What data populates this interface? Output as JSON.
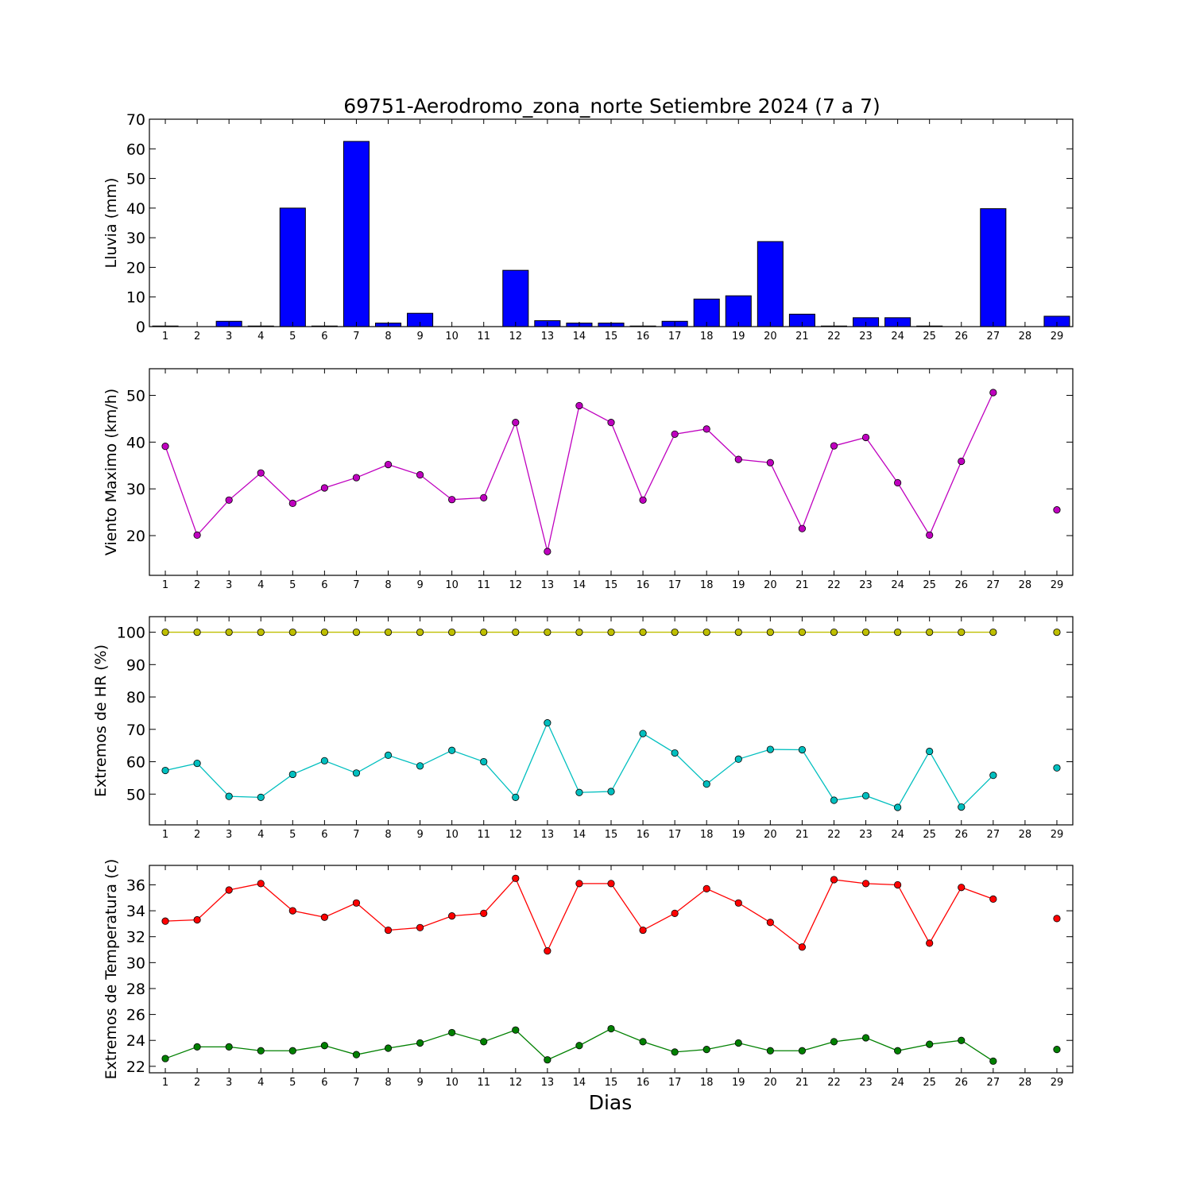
{
  "title": "69751-Aerodromo_zona_norte Setiembre 2024  (7 a 7)",
  "xlabel": "Dias",
  "chart_data": [
    {
      "id": "lluvia",
      "type": "bar",
      "ylabel": "Lluvia (mm)",
      "ylim": [
        0,
        70
      ],
      "yticks": [
        0,
        10,
        20,
        30,
        40,
        50,
        60,
        70
      ],
      "x": [
        1,
        2,
        3,
        4,
        5,
        6,
        7,
        8,
        9,
        10,
        11,
        12,
        13,
        14,
        15,
        16,
        17,
        18,
        19,
        20,
        21,
        22,
        23,
        24,
        25,
        26,
        27,
        28,
        29
      ],
      "xlim": [
        0.5,
        29.5
      ],
      "grid": false,
      "series": [
        {
          "color": "#0000ff",
          "values": [
            0.2,
            0,
            1.8,
            0.2,
            40,
            0.2,
            62.5,
            1.2,
            4.5,
            0,
            0,
            19,
            2,
            1.2,
            1.2,
            0.2,
            1.8,
            9.3,
            10.4,
            28.7,
            4.2,
            0.2,
            3,
            3,
            0.2,
            0,
            39.8,
            null,
            3.5
          ]
        }
      ]
    },
    {
      "id": "viento",
      "type": "line",
      "ylabel": "Viento Maximo (km/h)",
      "ylim": [
        11.5,
        55.7
      ],
      "yticks": [
        20,
        30,
        40,
        50
      ],
      "x": [
        1,
        2,
        3,
        4,
        5,
        6,
        7,
        8,
        9,
        10,
        11,
        12,
        13,
        14,
        15,
        16,
        17,
        18,
        19,
        20,
        21,
        22,
        23,
        24,
        25,
        26,
        27,
        28,
        29
      ],
      "xlim": [
        0.5,
        29.5
      ],
      "grid": false,
      "series": [
        {
          "color": "#bf00bf",
          "values": [
            39.1,
            20.1,
            27.6,
            33.4,
            26.9,
            30.2,
            32.4,
            35.2,
            33,
            27.7,
            28.1,
            44.2,
            16.6,
            47.8,
            44.2,
            27.6,
            41.7,
            42.8,
            36.3,
            35.6,
            21.5,
            39.2,
            41,
            31.3,
            20.1,
            35.9,
            50.6,
            null,
            25.5
          ]
        }
      ]
    },
    {
      "id": "hr",
      "type": "line",
      "ylabel": "Extremos de HR (%)",
      "ylim": [
        40.5,
        104.8
      ],
      "yticks": [
        50,
        60,
        70,
        80,
        90,
        100
      ],
      "x": [
        1,
        2,
        3,
        4,
        5,
        6,
        7,
        8,
        9,
        10,
        11,
        12,
        13,
        14,
        15,
        16,
        17,
        18,
        19,
        20,
        21,
        22,
        23,
        24,
        25,
        26,
        27,
        28,
        29
      ],
      "xlim": [
        0.5,
        29.5
      ],
      "grid": false,
      "series": [
        {
          "color": "#bfbf00",
          "values": [
            100,
            100,
            100,
            100,
            100,
            100,
            100,
            100,
            100,
            100,
            100,
            100,
            100,
            100,
            100,
            100,
            100,
            100,
            100,
            100,
            100,
            100,
            100,
            100,
            100,
            100,
            100,
            null,
            100
          ]
        },
        {
          "color": "#00bfbf",
          "values": [
            57.3,
            59.5,
            49.3,
            49,
            56.1,
            60.3,
            56.5,
            62,
            58.7,
            63.5,
            60,
            49,
            72,
            50.5,
            50.8,
            68.7,
            62.7,
            53.1,
            60.8,
            63.8,
            63.7,
            48.1,
            49.5,
            45.9,
            63.2,
            46,
            55.8,
            null,
            58.1
          ]
        }
      ]
    },
    {
      "id": "temperatura",
      "type": "line",
      "ylabel": "Extremos de Temperatura (c)",
      "ylim": [
        21.5,
        37.5
      ],
      "yticks": [
        22,
        24,
        26,
        28,
        30,
        32,
        34,
        36
      ],
      "x": [
        1,
        2,
        3,
        4,
        5,
        6,
        7,
        8,
        9,
        10,
        11,
        12,
        13,
        14,
        15,
        16,
        17,
        18,
        19,
        20,
        21,
        22,
        23,
        24,
        25,
        26,
        27,
        28,
        29
      ],
      "xlim": [
        0.5,
        29.5
      ],
      "grid": false,
      "series": [
        {
          "color": "#ff0000",
          "values": [
            33.2,
            33.3,
            35.6,
            36.1,
            34,
            33.5,
            34.6,
            32.5,
            32.7,
            33.6,
            33.8,
            36.5,
            30.9,
            36.1,
            36.1,
            32.5,
            33.8,
            35.7,
            34.6,
            33.1,
            31.2,
            36.4,
            36.1,
            36,
            31.5,
            35.8,
            34.9,
            null,
            33.4
          ]
        },
        {
          "color": "#008000",
          "values": [
            22.6,
            23.5,
            23.5,
            23.2,
            23.2,
            23.6,
            22.9,
            23.4,
            23.8,
            24.6,
            23.9,
            24.8,
            22.5,
            23.6,
            24.9,
            23.9,
            23.1,
            23.3,
            23.8,
            23.2,
            23.2,
            23.9,
            24.2,
            23.2,
            23.7,
            24,
            22.4,
            null,
            23.3
          ]
        }
      ]
    }
  ]
}
